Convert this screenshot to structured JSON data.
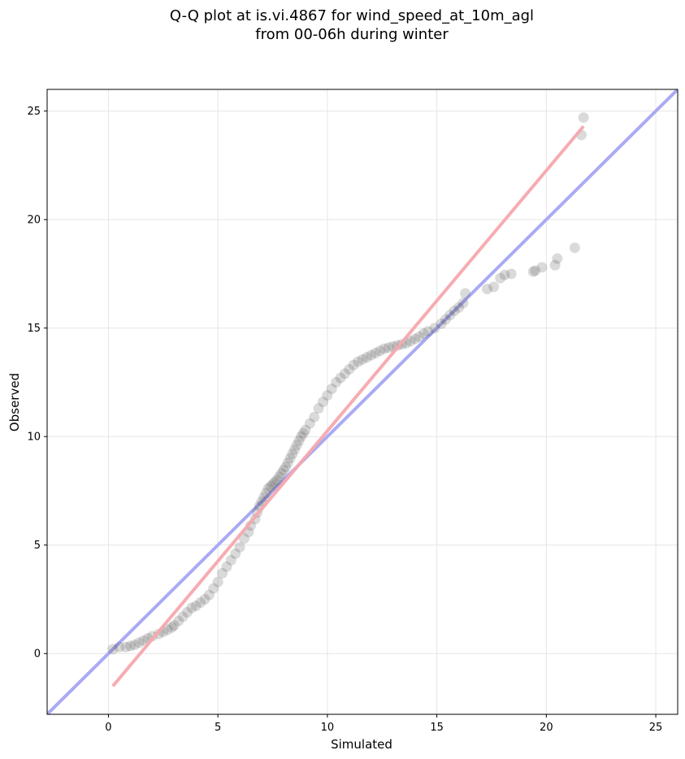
{
  "chart_data": {
    "type": "scatter",
    "title_lines": [
      "Q-Q plot at is.vi.4867 for wind_speed_at_10m_agl",
      "from 00-06h during winter"
    ],
    "xlabel": "Simulated",
    "ylabel": "Observed",
    "xlim": [
      -2.8,
      26.0
    ],
    "ylim": [
      -2.8,
      26.0
    ],
    "xticks": [
      0,
      5,
      10,
      15,
      20,
      25
    ],
    "yticks": [
      0,
      5,
      10,
      15,
      20,
      25
    ],
    "grid": true,
    "colors": {
      "points": "#444444",
      "identity_line": "#aaaaf4",
      "fit_line": "#f5a8ae",
      "frame": "#000000",
      "grid": "#e6e6e6"
    },
    "identity_line": {
      "x": [
        -2.8,
        26.0
      ],
      "y": [
        -2.8,
        26.0
      ]
    },
    "fit_line": {
      "x": [
        0.2,
        21.7
      ],
      "y": [
        -1.5,
        24.3
      ]
    },
    "series": [
      {
        "x": [
          0.2,
          0.5,
          0.8,
          1.0,
          1.2,
          1.4,
          1.6,
          1.8,
          2.0,
          2.3,
          2.5,
          2.7,
          2.9,
          3.0,
          3.2,
          3.4,
          3.6,
          3.8,
          4.0,
          4.2,
          4.4,
          4.6,
          4.8,
          5.0,
          5.2,
          5.4,
          5.6,
          5.8,
          6.0,
          6.2,
          6.4,
          6.5,
          6.7,
          6.8,
          6.9,
          7.0,
          7.1,
          7.2,
          7.3,
          7.4,
          7.5,
          7.6,
          7.7,
          7.8,
          7.9,
          8.0,
          8.1,
          8.2,
          8.3,
          8.4,
          8.5,
          8.6,
          8.7,
          8.8,
          8.9,
          9.0,
          9.2,
          9.4,
          9.6,
          9.8,
          10.0,
          10.2,
          10.4,
          10.6,
          10.8,
          11.0,
          11.2,
          11.4,
          11.6,
          11.8,
          12.0,
          12.2,
          12.4,
          12.6,
          12.8,
          13.0,
          13.2,
          13.4,
          13.6,
          13.8,
          14.0,
          14.2,
          14.4,
          14.6,
          14.9,
          15.2,
          15.4,
          15.6,
          15.8,
          16.0,
          16.2,
          16.3,
          17.3,
          17.6,
          17.9,
          18.1,
          18.4,
          19.4,
          19.5,
          19.8,
          20.4,
          20.5,
          21.3,
          21.6,
          21.7
        ],
        "y": [
          0.2,
          0.3,
          0.3,
          0.35,
          0.4,
          0.5,
          0.6,
          0.7,
          0.8,
          0.9,
          1.0,
          1.1,
          1.2,
          1.3,
          1.5,
          1.7,
          1.9,
          2.1,
          2.2,
          2.35,
          2.5,
          2.7,
          3.0,
          3.3,
          3.7,
          4.0,
          4.3,
          4.6,
          4.9,
          5.3,
          5.6,
          5.9,
          6.2,
          6.5,
          6.8,
          7.0,
          7.2,
          7.4,
          7.6,
          7.7,
          7.8,
          7.9,
          8.0,
          8.15,
          8.3,
          8.45,
          8.6,
          8.8,
          9.0,
          9.2,
          9.4,
          9.6,
          9.8,
          10.0,
          10.15,
          10.3,
          10.6,
          10.9,
          11.3,
          11.6,
          11.9,
          12.2,
          12.5,
          12.7,
          12.9,
          13.1,
          13.3,
          13.45,
          13.55,
          13.65,
          13.75,
          13.85,
          13.95,
          14.05,
          14.1,
          14.15,
          14.2,
          14.25,
          14.3,
          14.4,
          14.5,
          14.6,
          14.75,
          14.85,
          15.0,
          15.2,
          15.4,
          15.6,
          15.8,
          15.95,
          16.15,
          16.6,
          16.8,
          16.9,
          17.3,
          17.45,
          17.5,
          17.6,
          17.65,
          17.8,
          17.9,
          18.2,
          18.7,
          23.9,
          24.7
        ]
      }
    ]
  }
}
